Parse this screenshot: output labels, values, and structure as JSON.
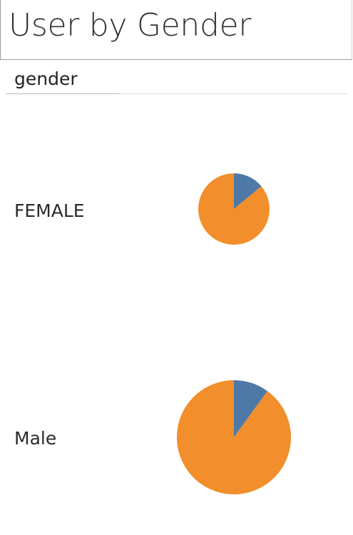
{
  "title": "User by Gender",
  "column_header": "gender",
  "colors": {
    "segment_primary": "#4e79a7",
    "segment_secondary": "#f28e2b"
  },
  "chart_data": {
    "type": "pie",
    "title": "User by Gender",
    "row_dimension": "gender",
    "rows": [
      {
        "label": "FEMALE",
        "relative_total": 0.39,
        "slices": [
          {
            "share": 0.14,
            "color": "#4e79a7"
          },
          {
            "share": 0.86,
            "color": "#f28e2b"
          }
        ]
      },
      {
        "label": "Male",
        "relative_total": 1.0,
        "slices": [
          {
            "share": 0.1,
            "color": "#4e79a7"
          },
          {
            "share": 0.9,
            "color": "#f28e2b"
          }
        ]
      }
    ]
  }
}
